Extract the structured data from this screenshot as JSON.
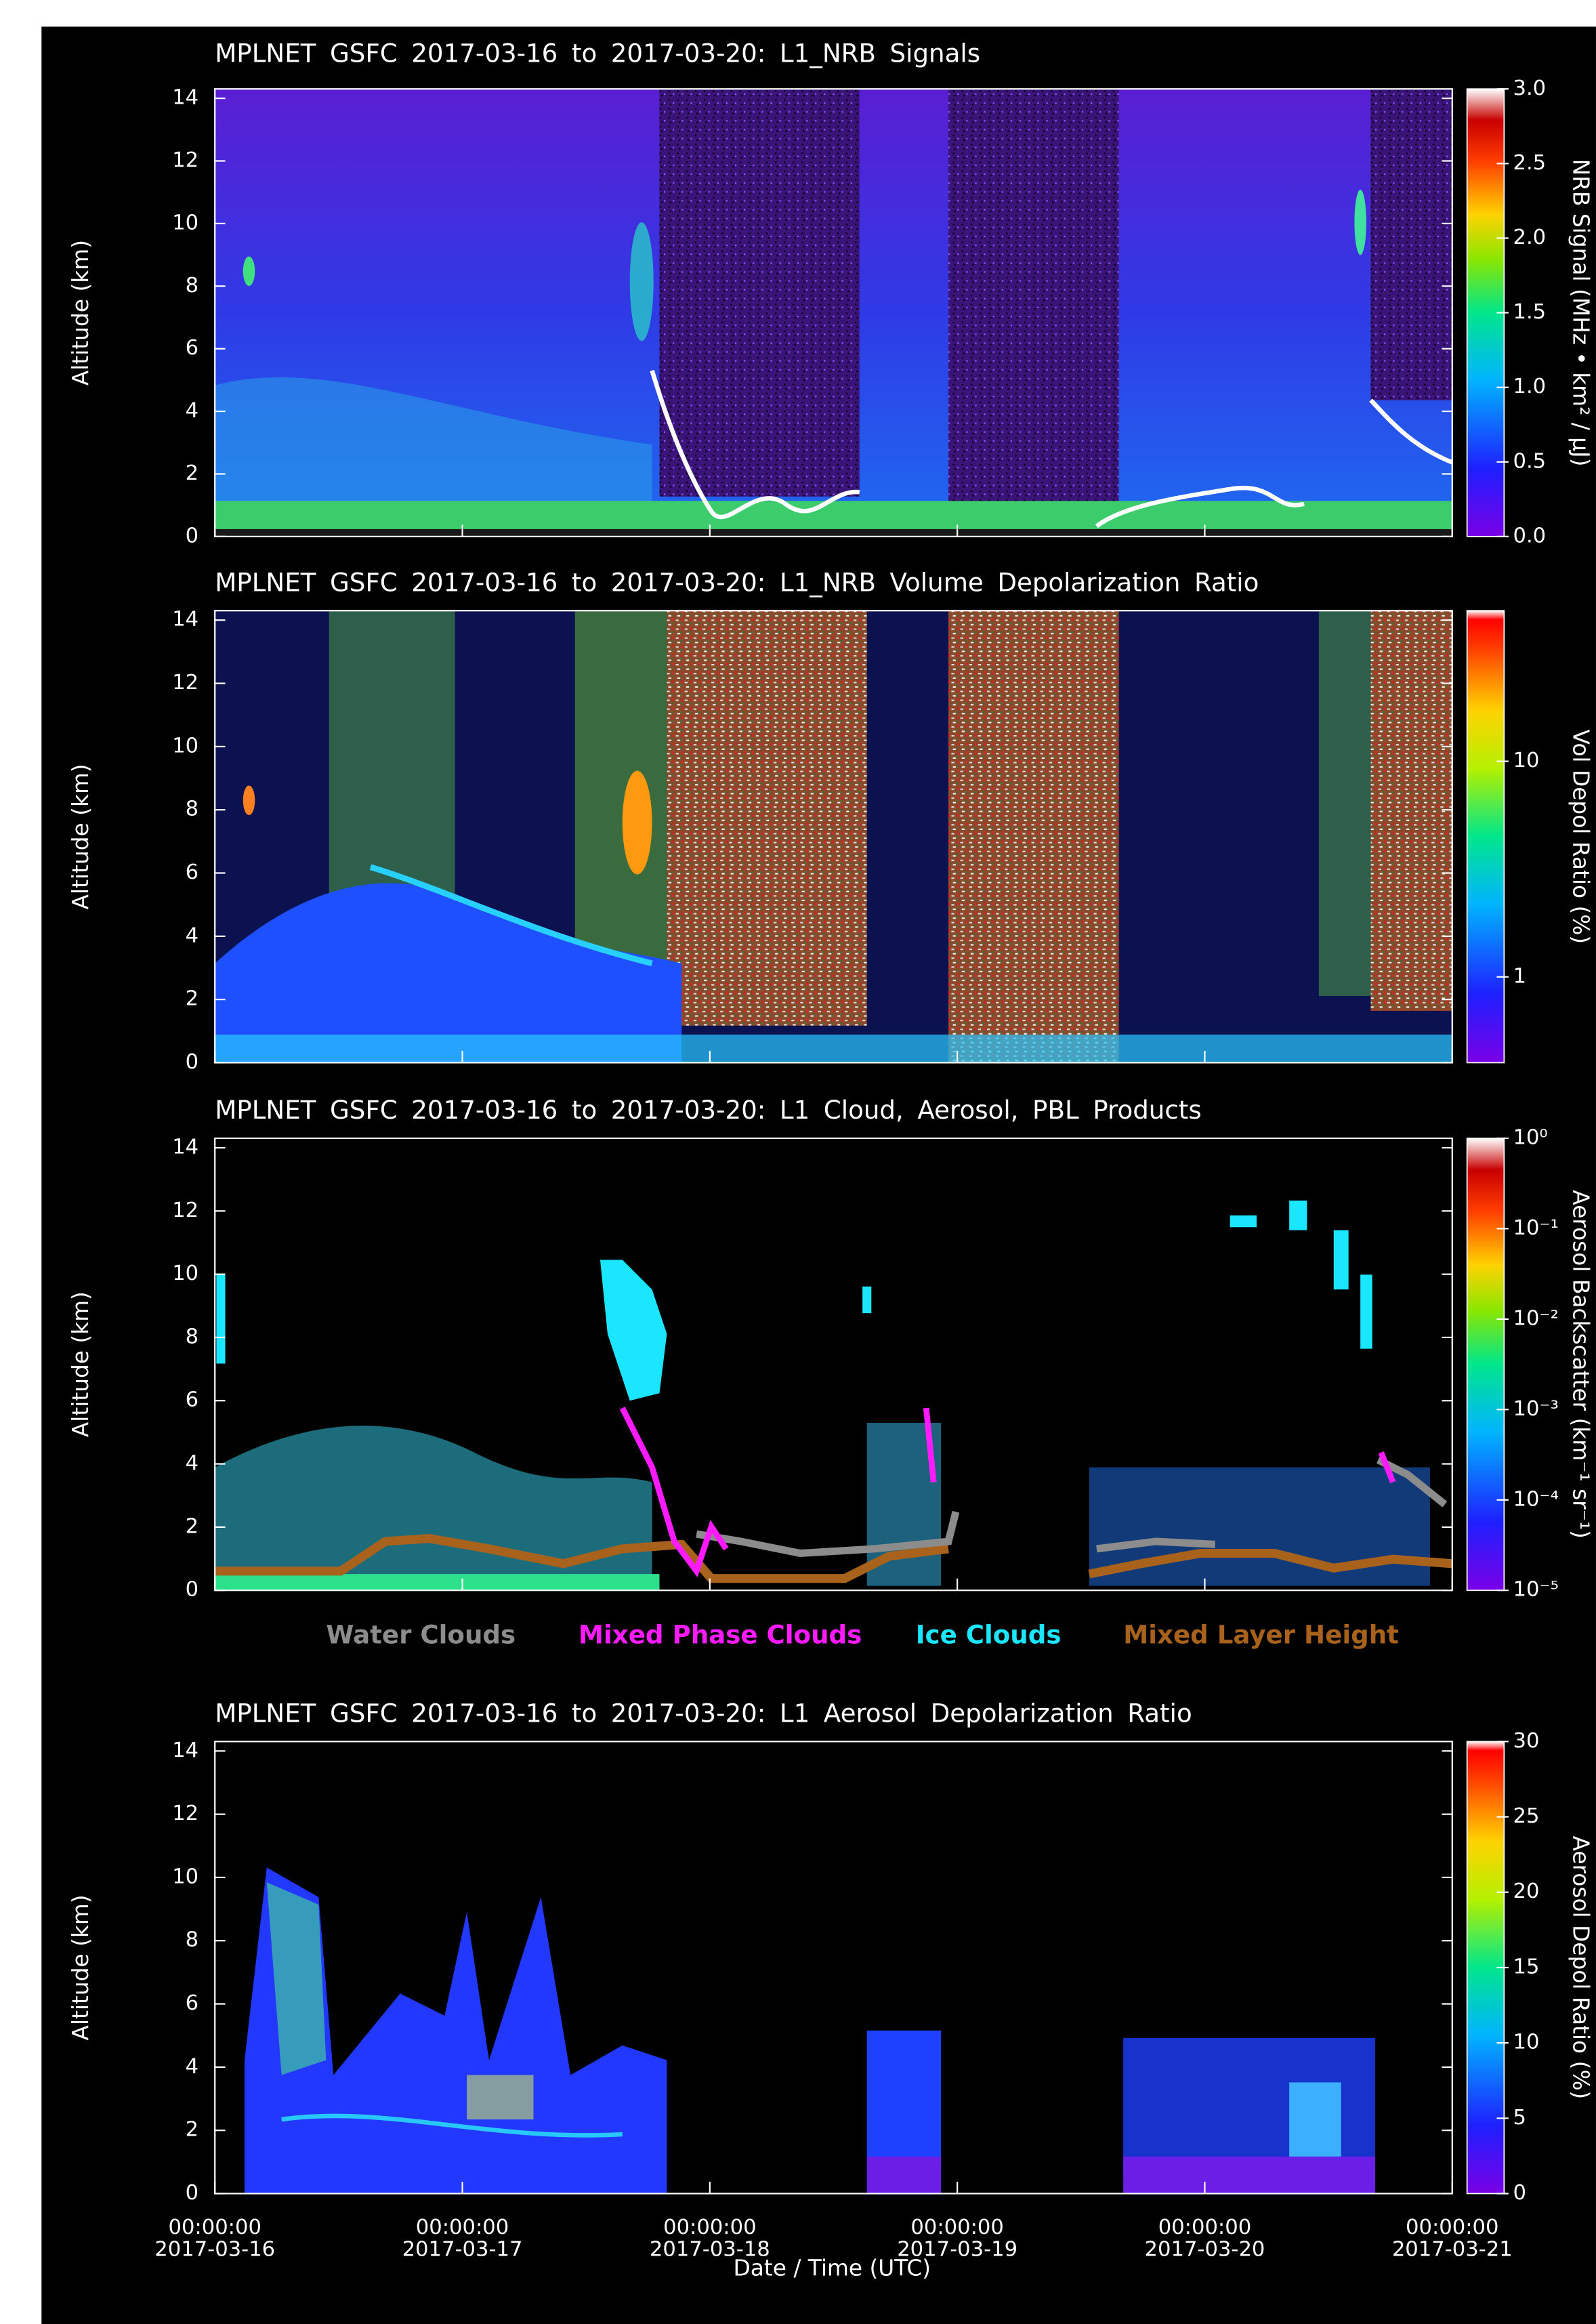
{
  "chart_data": [
    {
      "type": "heatmap",
      "title": "MPLNET GSFC 2017-03-16 to 2017-03-20: L1_NRB Signals",
      "y_label": "Altitude (km)",
      "ylim": [
        0,
        14.3
      ],
      "yticks": [
        0,
        2,
        4,
        6,
        8,
        10,
        12,
        14
      ],
      "colorbar": {
        "label": "NRB Signal (MHz • km² / μJ)",
        "clim": [
          0,
          3
        ],
        "log": false,
        "ticks": [
          {
            "value": 0,
            "label": "0.0"
          },
          0.5,
          {
            "value": 1,
            "label": "1.0"
          },
          1.5,
          {
            "value": 2,
            "label": "2.0"
          },
          2.5,
          {
            "value": 3,
            "label": "3.0"
          }
        ]
      }
    },
    {
      "type": "heatmap",
      "title": "MPLNET GSFC 2017-03-16 to 2017-03-20: L1_NRB Volume Depolarization Ratio",
      "y_label": "Altitude (km)",
      "ylim": [
        0,
        14.3
      ],
      "yticks": [
        0,
        2,
        4,
        6,
        8,
        10,
        12,
        14
      ],
      "colorbar": {
        "label": "Vol Depol Ratio (%)",
        "clim": [
          0.4,
          50
        ],
        "log": true,
        "ticks": [
          1,
          10
        ]
      }
    },
    {
      "type": "heatmap",
      "title": "MPLNET GSFC 2017-03-16 to 2017-03-20: L1 Cloud, Aerosol, PBL Products",
      "y_label": "Altitude (km)",
      "ylim": [
        0,
        14.3
      ],
      "yticks": [
        0,
        2,
        4,
        6,
        8,
        10,
        12,
        14
      ],
      "colorbar": {
        "label": "Aerosol Backscatter (km⁻¹ sr⁻¹)",
        "clim": [
          1e-05,
          1
        ],
        "log": true,
        "ticks": [
          {
            "value": 1,
            "label": "10⁰"
          },
          {
            "value": 0.1,
            "label": "10⁻¹"
          },
          {
            "value": 0.01,
            "label": "10⁻²"
          },
          {
            "value": 0.001,
            "label": "10⁻³"
          },
          {
            "value": 0.0001,
            "label": "10⁻⁴"
          },
          {
            "value": 1e-05,
            "label": "10⁻⁵"
          }
        ]
      },
      "legend": [
        {
          "name": "Water Clouds",
          "color": "#8c8c8c"
        },
        {
          "name": "Mixed Phase Clouds",
          "color": "#ff1aff"
        },
        {
          "name": "Ice Clouds",
          "color": "#1ae6ff"
        },
        {
          "name": "Mixed Layer Height",
          "color": "#a8621c"
        }
      ]
    },
    {
      "type": "heatmap",
      "title": "MPLNET GSFC 2017-03-16 to 2017-03-20: L1 Aerosol Depolarization Ratio",
      "y_label": "Altitude (km)",
      "ylim": [
        0,
        14.3
      ],
      "yticks": [
        0,
        2,
        4,
        6,
        8,
        10,
        12,
        14
      ],
      "colorbar": {
        "label": "Aerosol Depol Ratio (%)",
        "clim": [
          0,
          30
        ],
        "log": false,
        "ticks": [
          0,
          5,
          10,
          15,
          20,
          25,
          30
        ]
      },
      "x_label": "Date / Time (UTC)",
      "xlim": [
        "2017-03-16 00:00:00",
        "2017-03-21 00:00:00"
      ],
      "xticks": [
        {
          "value": "2017-03-16 00:00:00",
          "label": "00:00:00\n2017-03-16"
        },
        {
          "value": "2017-03-17 00:00:00",
          "label": "00:00:00\n2017-03-17"
        },
        {
          "value": "2017-03-18 00:00:00",
          "label": "00:00:00\n2017-03-18"
        },
        {
          "value": "2017-03-19 00:00:00",
          "label": "00:00:00\n2017-03-19"
        },
        {
          "value": "2017-03-20 00:00:00",
          "label": "00:00:00\n2017-03-20"
        },
        {
          "value": "2017-03-21 00:00:00",
          "label": "00:00:00\n2017-03-21"
        }
      ]
    }
  ]
}
